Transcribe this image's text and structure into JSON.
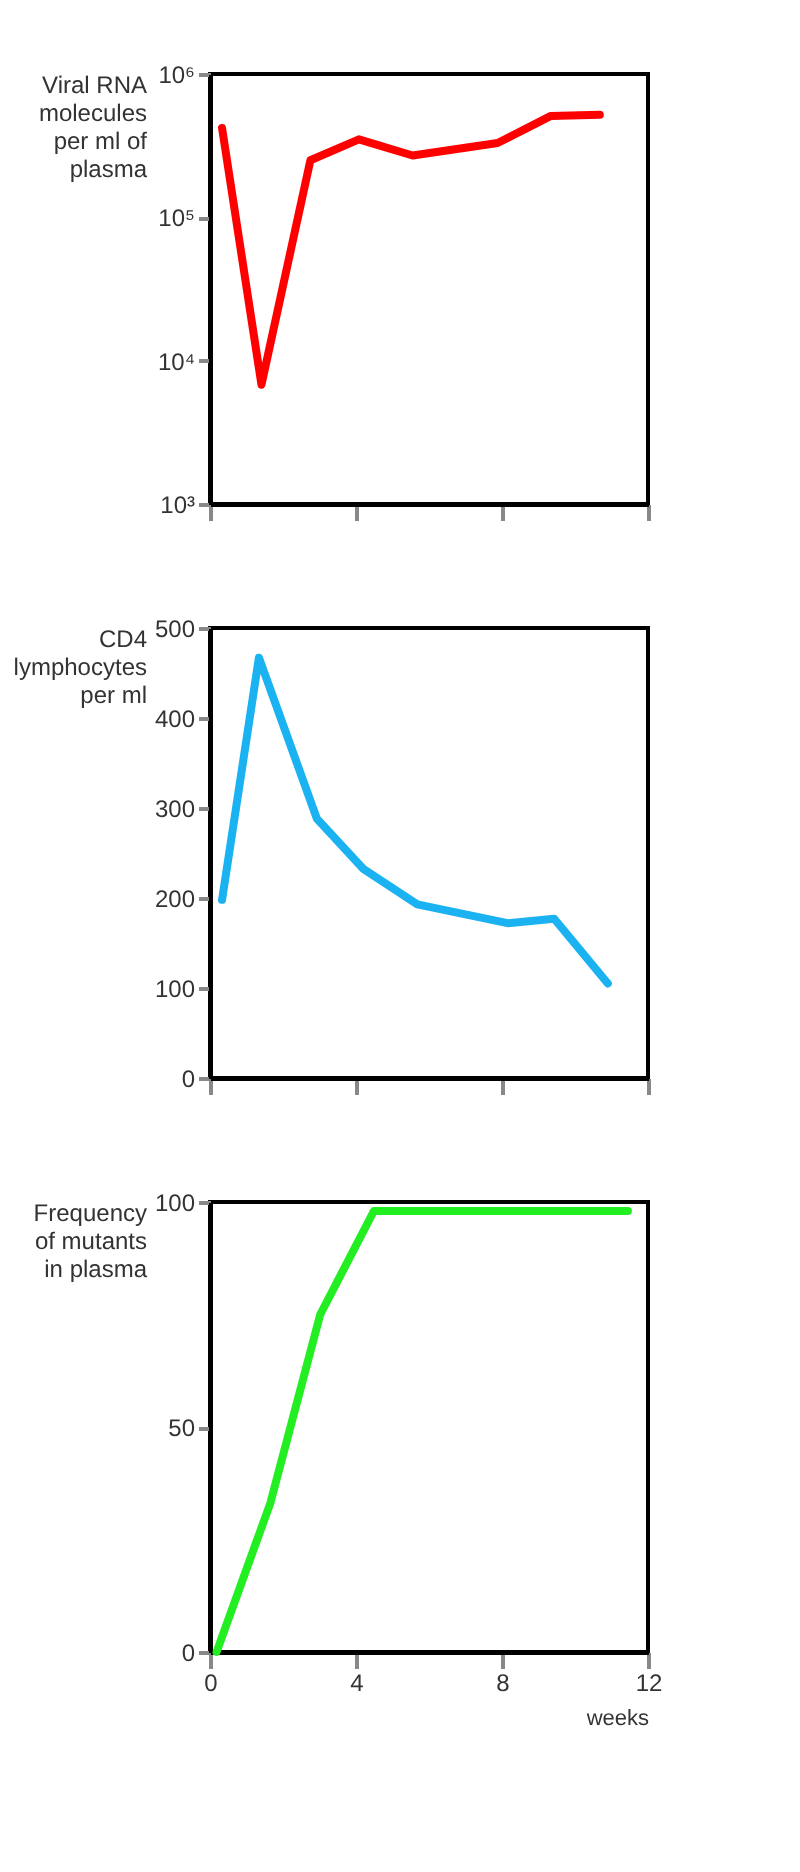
{
  "chart_data": [
    {
      "type": "line",
      "ylabel": "Viral RNA molecules per ml of plasma",
      "log": "y",
      "x": [
        0.33,
        1.41,
        2.75,
        4.08,
        5.55,
        7.88,
        9.34,
        10.68
      ],
      "series": [
        {
          "color": "#ff0000",
          "values": [
            420000,
            6800,
            250000,
            350000,
            270000,
            330000,
            510000,
            520000
          ]
        }
      ],
      "xlim": [
        0,
        12
      ],
      "xticks": [
        {
          "value": 0,
          "label": null
        },
        {
          "value": 4,
          "label": null
        },
        {
          "value": 8,
          "label": null
        },
        {
          "value": 12,
          "label": null
        }
      ],
      "ylim": [
        1000,
        1000000
      ],
      "yticks": [
        {
          "value": 1000,
          "label": "10³"
        },
        {
          "value": 10000,
          "label": "10⁴"
        },
        {
          "value": 100000,
          "label": "10⁵"
        },
        {
          "value": 1000000,
          "label": "10⁶"
        }
      ],
      "tick_labels": "y",
      "grid": false
    },
    {
      "type": "line",
      "ylabel": "CD4 lymphocytes per ml",
      "x": [
        0.33,
        1.34,
        2.93,
        4.21,
        5.68,
        8.15,
        9.43,
        10.9
      ],
      "series": [
        {
          "color": "#1ab2f0",
          "values": [
            198,
            467,
            288,
            232,
            193,
            172,
            177,
            105
          ]
        }
      ],
      "xlim": [
        0,
        12
      ],
      "xticks": [
        {
          "value": 0,
          "label": null
        },
        {
          "value": 4,
          "label": null
        },
        {
          "value": 8,
          "label": null
        },
        {
          "value": 12,
          "label": null
        }
      ],
      "ylim": [
        0,
        500
      ],
      "yticks": [
        0,
        100,
        200,
        300,
        400,
        500
      ],
      "tick_labels": "y",
      "grid": false
    },
    {
      "type": "line",
      "ylabel": "Frequency of mutants in plasma",
      "xlabel": "weeks",
      "x": [
        0.18,
        1.65,
        3.02,
        4.49,
        11.45
      ],
      "series": [
        {
          "color": "#22ee22",
          "values": [
            0,
            33,
            75,
            98,
            98
          ]
        }
      ],
      "xlim": [
        0,
        12
      ],
      "xticks": [
        0,
        4,
        8,
        12
      ],
      "ylim": [
        0,
        100
      ],
      "yticks": [
        0,
        50,
        100
      ],
      "grid": false
    }
  ]
}
